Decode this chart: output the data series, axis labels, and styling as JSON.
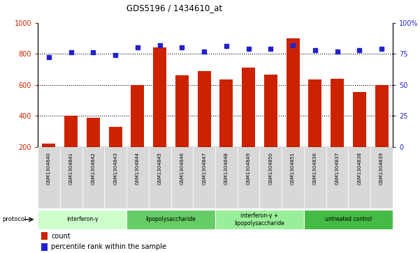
{
  "title": "GDS5196 / 1434610_at",
  "samples": [
    "GSM1304840",
    "GSM1304841",
    "GSM1304842",
    "GSM1304843",
    "GSM1304844",
    "GSM1304845",
    "GSM1304846",
    "GSM1304847",
    "GSM1304848",
    "GSM1304849",
    "GSM1304850",
    "GSM1304851",
    "GSM1304836",
    "GSM1304837",
    "GSM1304838",
    "GSM1304839"
  ],
  "counts": [
    220,
    400,
    385,
    330,
    600,
    840,
    660,
    690,
    635,
    710,
    665,
    900,
    635,
    640,
    555,
    600
  ],
  "percentiles": [
    72,
    76,
    76,
    74,
    80,
    82,
    80,
    77,
    81,
    79,
    79,
    82,
    78,
    77,
    78,
    79
  ],
  "groups": [
    {
      "label": "interferon-γ",
      "start": 0,
      "end": 4,
      "color": "#ccffcc"
    },
    {
      "label": "lipopolysaccharide",
      "start": 4,
      "end": 8,
      "color": "#66cc66"
    },
    {
      "label": "interferon-γ +\nlipopolysaccharide",
      "start": 8,
      "end": 12,
      "color": "#99ee99"
    },
    {
      "label": "untreated control",
      "start": 12,
      "end": 16,
      "color": "#44bb44"
    }
  ],
  "bar_color": "#cc2200",
  "dot_color": "#2222cc",
  "ylim_left": [
    200,
    1000
  ],
  "ylim_right": [
    0,
    100
  ],
  "yticks_left": [
    200,
    400,
    600,
    800,
    1000
  ],
  "yticks_right": [
    0,
    25,
    50,
    75,
    100
  ],
  "grid_values": [
    400,
    600,
    800
  ],
  "bg_color": "#ffffff",
  "tick_area_color": "#d8d8d8"
}
